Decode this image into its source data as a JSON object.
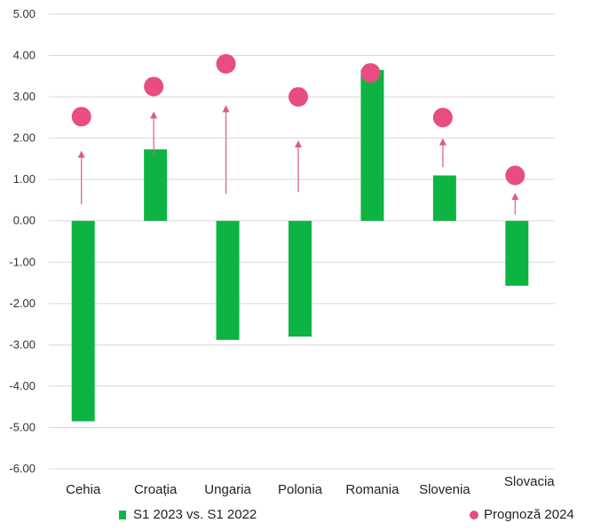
{
  "chart_data": {
    "type": "bar",
    "categories": [
      "Cehia",
      "Croația",
      "Ungaria",
      "Polonia",
      "Romania",
      "Slovenia",
      "Slovacia"
    ],
    "series": [
      {
        "name": "S1 2023 vs. S1 2022",
        "type": "bar",
        "color": "#0db443",
        "values": [
          -4.85,
          1.73,
          -2.88,
          -2.8,
          3.65,
          1.1,
          -1.57
        ]
      },
      {
        "name": "Prognoză 2024",
        "type": "scatter",
        "color": "#e84c82",
        "values": [
          2.52,
          3.25,
          3.8,
          3.0,
          3.58,
          2.5,
          1.1
        ]
      }
    ],
    "arrows": {
      "color": "#e05a8a",
      "from": [
        0.4,
        1.6,
        0.65,
        0.7,
        null,
        1.3,
        0.15
      ],
      "to": [
        1.7,
        2.65,
        2.8,
        1.95,
        null,
        2.0,
        0.68
      ]
    },
    "yticks": [
      "5.00",
      "4.00",
      "3.00",
      "2.00",
      "1.00",
      "0.00",
      "-1.00",
      "-2.00",
      "-3.00",
      "-4.00",
      "-5.00",
      "-6.00"
    ],
    "ylim": [
      -6,
      5
    ],
    "grid": true,
    "legend_position": "bottom",
    "title": "",
    "xlabel": "",
    "ylabel": ""
  }
}
